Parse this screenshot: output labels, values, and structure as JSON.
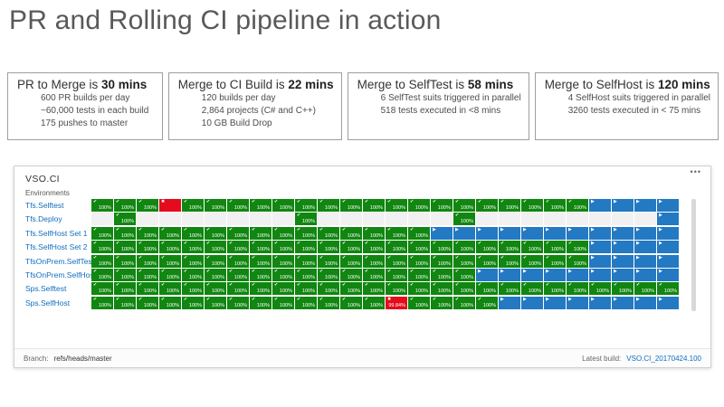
{
  "page": {
    "title": "PR and Rolling CI pipeline in action"
  },
  "info_boxes": [
    {
      "heading": "PR to Merge is",
      "duration": "30 mins",
      "lines": [
        "600 PR builds per day",
        "~60,000 tests in each build",
        "175 pushes to master"
      ]
    },
    {
      "heading": "Merge to CI Build is",
      "duration": "22 mins",
      "lines": [
        "120 builds per day",
        "2,864 projects (C# and C++)",
        "10 GB Build Drop"
      ]
    },
    {
      "heading": "Merge to SelfTest is",
      "duration": "58 mins",
      "lines": [
        "6 SelfTest suits triggered in parallel",
        "518 tests executed in <8 mins"
      ]
    },
    {
      "heading": "Merge to SelfHost is",
      "duration": "120 mins",
      "lines": [
        "4 SelfHost suits triggered in parallel",
        "3260 tests executed in < 75 mins"
      ]
    }
  ],
  "dashboard": {
    "title": "VSO.CI",
    "environments_label": "Environments",
    "cell_text": {
      "pass": "100%",
      "fail": "99.84%"
    },
    "icons": {
      "check": "✔",
      "fail": "✖",
      "play": "▶",
      "menu": "•••"
    },
    "legend": {
      "g": "passed",
      "r": "failed",
      "R": "failed-with-percent",
      "b": "queued",
      "e": "empty"
    },
    "rows": [
      {
        "label": "Tfs.Selftest",
        "cells": "gggrggggggggggggggggggbbbb"
      },
      {
        "label": "Tfs.Deploy",
        "cells": "egeeeeeeegeeeeeegeeeeeeeeb"
      },
      {
        "label": "Tfs.SelfHost Set 1",
        "cells": "gggggggggggggggbbbbbbbbbbb"
      },
      {
        "label": "Tfs.SelfHost Set 2",
        "cells": "ggggggggggggggggggggggbbbb"
      },
      {
        "label": "TfsOnPrem.SelfTest",
        "cells": "ggggggggggggggggggggggbbbb"
      },
      {
        "label": "TfsOnPrem.SelfHost",
        "cells": "gggggggggggggggggbbbbbbbbb"
      },
      {
        "label": "Sps.Selftest",
        "cells": "gggggggggggggggggggggggggg"
      },
      {
        "label": "Sps.SelfHost",
        "cells": "gggggggggggggRggggbbbbbbbb"
      }
    ],
    "footer": {
      "branch_label": "Branch:",
      "branch_value": "refs/heads/master",
      "build_label": "Latest build:",
      "build_value": "VSO.CI_20170424.100"
    }
  },
  "colors": {
    "green": "#118611",
    "red": "#e30b1c",
    "blue": "#2379c2",
    "link": "#106ebe"
  }
}
